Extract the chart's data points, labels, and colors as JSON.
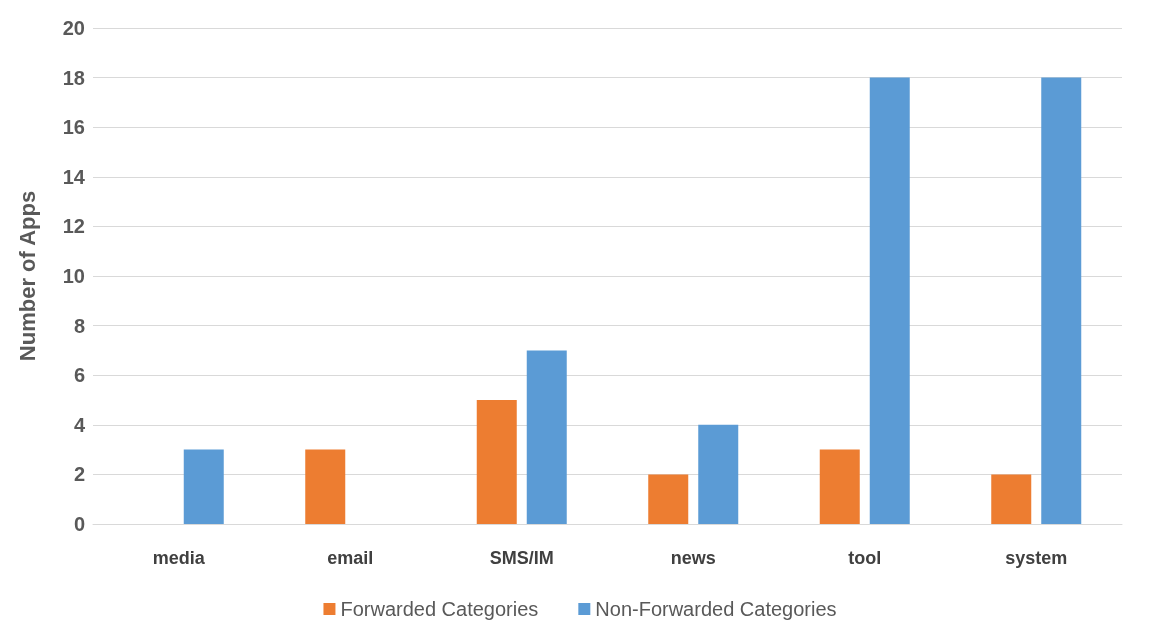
{
  "chart_data": {
    "type": "bar",
    "ylabel": "Number of Apps",
    "categories": [
      "media",
      "email",
      "SMS/IM",
      "news",
      "tool",
      "system"
    ],
    "series": [
      {
        "name": "Forwarded Categories",
        "color": "#ed7d31",
        "values": [
          0,
          3,
          5,
          2,
          3,
          2
        ]
      },
      {
        "name": "Non-Forwarded Categories",
        "color": "#5b9bd5",
        "values": [
          3,
          0,
          7,
          4,
          18,
          18
        ]
      }
    ],
    "ylim": [
      0,
      20
    ],
    "yticks": [
      0,
      2,
      4,
      6,
      8,
      10,
      12,
      14,
      16,
      18,
      20
    ],
    "grid": "y",
    "legend": "bottom"
  }
}
